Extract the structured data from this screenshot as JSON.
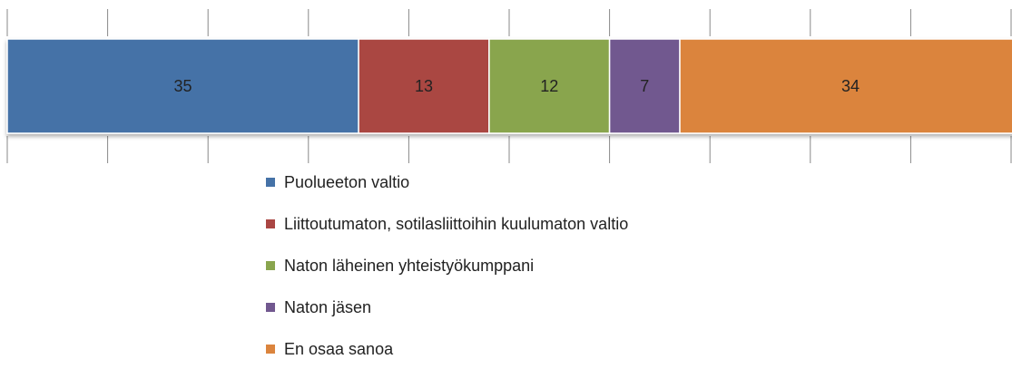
{
  "chart_data": {
    "type": "stacked_barh",
    "series": [
      {
        "name": "Puolueeton valtio",
        "color": "#4572a7",
        "values": [
          35
        ]
      },
      {
        "name": "Liittoutumaton, sotilasliittoihin kuulumaton valtio",
        "color": "#aa4643",
        "values": [
          13
        ]
      },
      {
        "name": "Naton läheinen yhteistyökumppani",
        "color": "#89a54e",
        "values": [
          12
        ]
      },
      {
        "name": "Naton jäsen",
        "color": "#71588f",
        "values": [
          7
        ]
      },
      {
        "name": "En osaa sanoa",
        "color": "#db843d",
        "values": [
          34
        ]
      }
    ],
    "xlim": [
      0,
      100
    ],
    "xticks": [
      0,
      10,
      20,
      30,
      40,
      50,
      60,
      70,
      80,
      90,
      100
    ],
    "legend": "bottom"
  }
}
